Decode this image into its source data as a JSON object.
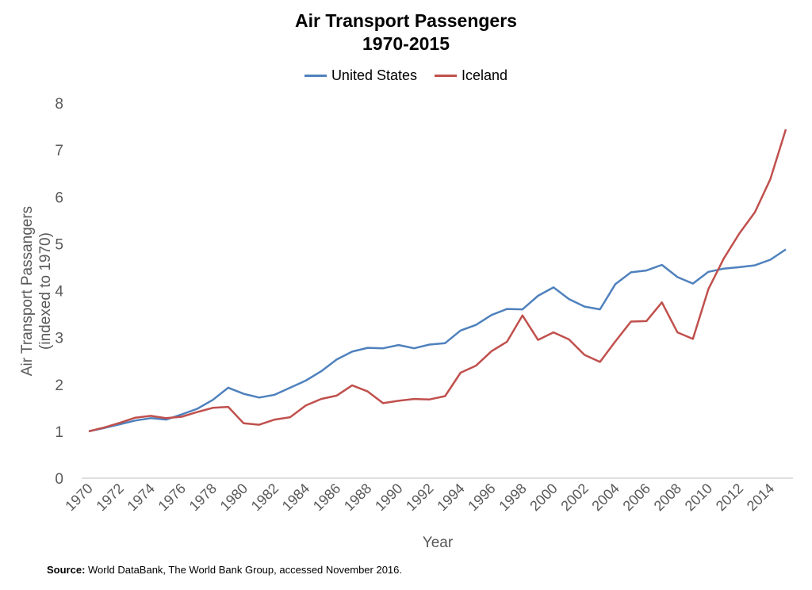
{
  "chart_data": {
    "type": "line",
    "title": "Air Transport Passengers",
    "subtitle": "1970-2015",
    "xlabel": "Year",
    "ylabel_line1": "Air Transport Passangers",
    "ylabel_line2": "(indexed to 1970)",
    "ylim": [
      0,
      8
    ],
    "yticks": [
      0,
      1,
      2,
      3,
      4,
      5,
      6,
      7,
      8
    ],
    "xticks": [
      "1970",
      "1972",
      "1974",
      "1976",
      "1978",
      "1980",
      "1982",
      "1984",
      "1986",
      "1988",
      "1990",
      "1992",
      "1994",
      "1996",
      "1998",
      "2000",
      "2002",
      "2004",
      "2006",
      "2008",
      "2010",
      "2012",
      "2014"
    ],
    "x": [
      1970,
      1971,
      1972,
      1973,
      1974,
      1975,
      1976,
      1977,
      1978,
      1979,
      1980,
      1981,
      1982,
      1983,
      1984,
      1985,
      1986,
      1987,
      1988,
      1989,
      1990,
      1991,
      1992,
      1993,
      1994,
      1995,
      1996,
      1997,
      1998,
      1999,
      2000,
      2001,
      2002,
      2003,
      2004,
      2005,
      2006,
      2007,
      2008,
      2009,
      2010,
      2011,
      2012,
      2013,
      2014,
      2015
    ],
    "grid": false,
    "legend_position": "top-center",
    "series": [
      {
        "name": "United States",
        "color": "#4f81bd",
        "values": [
          1.0,
          1.07,
          1.15,
          1.23,
          1.28,
          1.25,
          1.36,
          1.48,
          1.67,
          1.93,
          1.8,
          1.72,
          1.78,
          1.93,
          2.08,
          2.28,
          2.53,
          2.7,
          2.78,
          2.77,
          2.84,
          2.77,
          2.85,
          2.88,
          3.15,
          3.27,
          3.48,
          3.61,
          3.6,
          3.89,
          4.07,
          3.82,
          3.66,
          3.6,
          4.14,
          4.39,
          4.43,
          4.55,
          4.29,
          4.15,
          4.4,
          4.47,
          4.5,
          4.54,
          4.66,
          4.88
        ]
      },
      {
        "name": "Iceland",
        "color": "#c0504d",
        "values": [
          1.0,
          1.08,
          1.18,
          1.29,
          1.33,
          1.28,
          1.31,
          1.41,
          1.5,
          1.52,
          1.17,
          1.14,
          1.25,
          1.3,
          1.55,
          1.69,
          1.76,
          1.98,
          1.85,
          1.6,
          1.65,
          1.69,
          1.68,
          1.75,
          2.25,
          2.4,
          2.71,
          2.91,
          3.47,
          2.95,
          3.11,
          2.96,
          2.63,
          2.48,
          2.92,
          3.34,
          3.35,
          3.75,
          3.11,
          2.97,
          4.03,
          4.69,
          5.22,
          5.67,
          6.38,
          7.44
        ]
      }
    ]
  },
  "source": {
    "label": "Source:",
    "text": " World DataBank, The World Bank Group, accessed November 2016."
  }
}
